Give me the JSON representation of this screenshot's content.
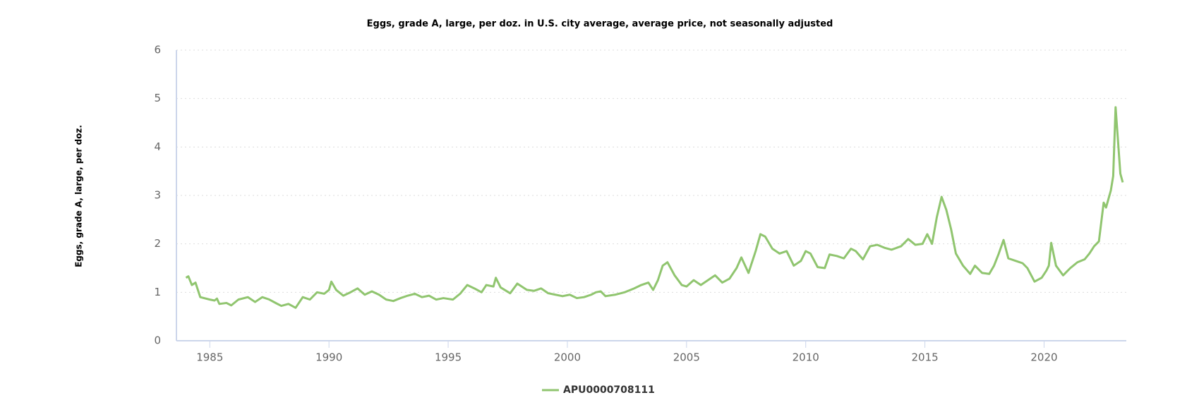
{
  "chart_data": {
    "type": "line",
    "title": "Eggs, grade A, large, per doz. in U.S. city average, average price, not seasonally adjusted",
    "y_label": "Eggs, grade A, large, per doz.",
    "x": [
      1984.0,
      1984.1,
      1984.25,
      1984.4,
      1984.6,
      1985.0,
      1985.2,
      1985.3,
      1985.4,
      1985.7,
      1985.9,
      1986.2,
      1986.6,
      1986.9,
      1987.2,
      1987.5,
      1987.8,
      1988.0,
      1988.3,
      1988.6,
      1988.9,
      1989.2,
      1989.5,
      1989.8,
      1990.0,
      1990.1,
      1990.3,
      1990.6,
      1990.9,
      1991.2,
      1991.5,
      1991.8,
      1992.1,
      1992.4,
      1992.7,
      1993.0,
      1993.3,
      1993.6,
      1993.9,
      1994.2,
      1994.5,
      1994.8,
      1995.2,
      1995.5,
      1995.8,
      1996.1,
      1996.4,
      1996.6,
      1996.9,
      1997.0,
      1997.2,
      1997.6,
      1997.9,
      1998.3,
      1998.6,
      1998.9,
      1999.2,
      1999.5,
      1999.8,
      2000.1,
      2000.4,
      2000.7,
      2001.0,
      2001.2,
      2001.4,
      2001.6,
      2002.0,
      2002.4,
      2002.8,
      2003.1,
      2003.4,
      2003.6,
      2003.8,
      2004.0,
      2004.2,
      2004.5,
      2004.8,
      2005.0,
      2005.3,
      2005.6,
      2005.9,
      2006.2,
      2006.5,
      2006.8,
      2007.1,
      2007.3,
      2007.6,
      2007.9,
      2008.1,
      2008.3,
      2008.6,
      2008.9,
      2009.2,
      2009.5,
      2009.8,
      2010.0,
      2010.2,
      2010.5,
      2010.8,
      2011.0,
      2011.3,
      2011.6,
      2011.9,
      2012.1,
      2012.4,
      2012.7,
      2013.0,
      2013.3,
      2013.6,
      2014.0,
      2014.3,
      2014.6,
      2014.9,
      2015.1,
      2015.3,
      2015.5,
      2015.7,
      2015.9,
      2016.1,
      2016.3,
      2016.6,
      2016.9,
      2017.1,
      2017.4,
      2017.7,
      2017.9,
      2018.1,
      2018.3,
      2018.5,
      2018.8,
      2019.1,
      2019.3,
      2019.6,
      2019.9,
      2020.1,
      2020.2,
      2020.3,
      2020.5,
      2020.8,
      2021.1,
      2021.4,
      2021.7,
      2021.9,
      2022.1,
      2022.3,
      2022.5,
      2022.6,
      2022.8,
      2022.9,
      2023.0,
      2023.2,
      2023.3
    ],
    "series": [
      {
        "name": "APU0000708111",
        "color": "#90c56f",
        "values": [
          1.3,
          1.33,
          1.15,
          1.2,
          0.9,
          0.85,
          0.83,
          0.87,
          0.76,
          0.78,
          0.73,
          0.85,
          0.9,
          0.8,
          0.9,
          0.85,
          0.77,
          0.72,
          0.76,
          0.68,
          0.9,
          0.85,
          1.0,
          0.97,
          1.05,
          1.22,
          1.05,
          0.93,
          1.0,
          1.08,
          0.95,
          1.02,
          0.95,
          0.85,
          0.82,
          0.88,
          0.93,
          0.97,
          0.9,
          0.93,
          0.85,
          0.88,
          0.85,
          0.97,
          1.15,
          1.08,
          1.0,
          1.15,
          1.12,
          1.3,
          1.1,
          0.98,
          1.18,
          1.05,
          1.03,
          1.08,
          0.98,
          0.95,
          0.92,
          0.95,
          0.88,
          0.9,
          0.95,
          1.0,
          1.02,
          0.92,
          0.95,
          1.0,
          1.08,
          1.15,
          1.2,
          1.05,
          1.25,
          1.55,
          1.62,
          1.35,
          1.15,
          1.12,
          1.25,
          1.15,
          1.25,
          1.35,
          1.2,
          1.28,
          1.5,
          1.72,
          1.4,
          1.85,
          2.2,
          2.15,
          1.9,
          1.8,
          1.85,
          1.55,
          1.65,
          1.85,
          1.8,
          1.52,
          1.5,
          1.78,
          1.75,
          1.7,
          1.9,
          1.85,
          1.68,
          1.95,
          1.98,
          1.92,
          1.88,
          1.95,
          2.1,
          1.98,
          2.0,
          2.2,
          2.0,
          2.55,
          2.97,
          2.7,
          2.3,
          1.8,
          1.55,
          1.38,
          1.55,
          1.4,
          1.38,
          1.55,
          1.8,
          2.08,
          1.7,
          1.65,
          1.6,
          1.5,
          1.22,
          1.3,
          1.45,
          1.55,
          2.02,
          1.55,
          1.35,
          1.5,
          1.62,
          1.68,
          1.8,
          1.95,
          2.05,
          2.85,
          2.75,
          3.1,
          3.4,
          4.82,
          3.45,
          3.27
        ]
      }
    ],
    "xlim": [
      1983.6,
      2023.45
    ],
    "xticks": [
      1985,
      1990,
      1995,
      2000,
      2005,
      2010,
      2015,
      2020
    ],
    "ylim": [
      0,
      6
    ],
    "yticks": [
      0,
      1,
      2,
      3,
      4,
      5,
      6
    ],
    "grid": true
  }
}
